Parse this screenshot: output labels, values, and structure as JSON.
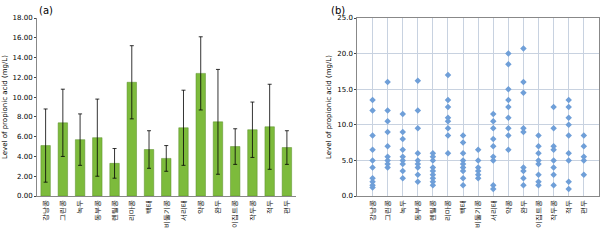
{
  "chart_data": [
    {
      "type": "bar",
      "title": "(a)",
      "y_label": "Level of propionic acid (mg/L)",
      "categories": [
        "강낭콩",
        "그린콩",
        "녹두",
        "동부콩",
        "렌틸콩",
        "리마콩",
        "백태",
        "비둘기콩",
        "서리태",
        "약콩",
        "완두",
        "이집트콩",
        "작두콩",
        "적두",
        "편두"
      ],
      "values": [
        5.1,
        7.4,
        5.7,
        5.9,
        3.3,
        11.5,
        4.7,
        3.8,
        6.9,
        12.4,
        7.5,
        5.0,
        6.7,
        7.0,
        4.9
      ],
      "errors": [
        3.7,
        3.4,
        2.6,
        3.9,
        1.5,
        3.7,
        1.9,
        1.3,
        3.8,
        3.7,
        5.3,
        1.8,
        2.8,
        4.3,
        1.7
      ],
      "color": "#7dbb3c",
      "ylim": [
        0,
        18
      ],
      "yticks": [
        {
          "value": 0,
          "label": "0.00"
        },
        {
          "value": 2,
          "label": "2.00"
        },
        {
          "value": 4,
          "label": "4.00"
        },
        {
          "value": 6,
          "label": "6.00"
        },
        {
          "value": 8,
          "label": "8.00"
        },
        {
          "value": 10,
          "label": "10.00"
        },
        {
          "value": 12,
          "label": "12.00"
        },
        {
          "value": 14,
          "label": "14.00"
        },
        {
          "value": 16,
          "label": "16.00"
        },
        {
          "value": 18,
          "label": "18.00"
        }
      ],
      "grid": false
    },
    {
      "type": "scatter",
      "title": "(b)",
      "y_label": "Level of propionic acid (mg/L)",
      "categories": [
        "강낭콩",
        "그린콩",
        "녹두",
        "동부콩",
        "렌틸콩",
        "리마콩",
        "백태",
        "비둘기콩",
        "서리태",
        "약콩",
        "완두",
        "이집트콩",
        "작두콩",
        "적두",
        "편두"
      ],
      "values": [
        [
          13.5,
          12.0,
          8.5,
          6.5,
          5.0,
          4.0,
          2.5,
          2.0,
          1.5,
          1.2
        ],
        [
          16.0,
          12.0,
          10.5,
          9.0,
          7.0,
          5.5,
          5.0,
          4.5,
          4.0
        ],
        [
          11.5,
          9.0,
          8.0,
          6.5,
          5.5,
          5.0,
          4.5,
          3.5,
          2.5
        ],
        [
          16.2,
          12.0,
          9.5,
          6.0,
          5.0,
          4.5,
          4.0,
          3.0,
          2.0
        ],
        [
          6.0,
          5.5,
          5.0,
          4.0,
          3.5,
          3.0,
          2.5,
          2.0,
          1.5
        ],
        [
          17.0,
          13.5,
          12.5,
          11.0,
          10.5,
          9.5,
          8.5,
          6.0
        ],
        [
          8.5,
          7.5,
          6.0,
          5.0,
          4.5,
          4.0,
          3.5,
          2.5,
          1.5
        ],
        [
          6.5,
          5.0,
          4.0,
          3.5,
          3.0,
          2.5
        ],
        [
          11.5,
          10.5,
          9.5,
          8.0,
          7.0,
          5.5,
          5.0,
          1.5,
          1.0
        ],
        [
          20.0,
          18.5,
          15.0,
          13.5,
          12.5,
          11.0,
          9.5,
          8.5,
          6.5
        ],
        [
          20.7,
          16.0,
          14.5,
          9.5,
          9.0,
          4.0,
          3.5,
          2.5,
          1.5
        ],
        [
          8.5,
          7.0,
          6.0,
          5.0,
          4.5,
          3.0,
          2.0,
          1.5
        ],
        [
          12.5,
          9.5,
          7.0,
          6.5,
          5.0,
          4.0,
          3.0,
          1.5
        ],
        [
          13.5,
          12.5,
          11.0,
          10.0,
          8.5,
          6.0,
          5.0,
          2.0,
          1.0
        ],
        [
          8.5,
          7.0,
          5.5,
          5.0,
          3.0
        ]
      ],
      "color": "#6f9fd8",
      "marker": "diamond",
      "ylim": [
        0,
        25
      ],
      "yticks": [
        {
          "value": 0,
          "label": "0.0"
        },
        {
          "value": 5,
          "label": "5.0"
        },
        {
          "value": 10,
          "label": "10.0"
        },
        {
          "value": 15,
          "label": "15.0"
        },
        {
          "value": 20,
          "label": "20.0"
        },
        {
          "value": 25,
          "label": "25.0"
        }
      ],
      "grid": true
    }
  ]
}
